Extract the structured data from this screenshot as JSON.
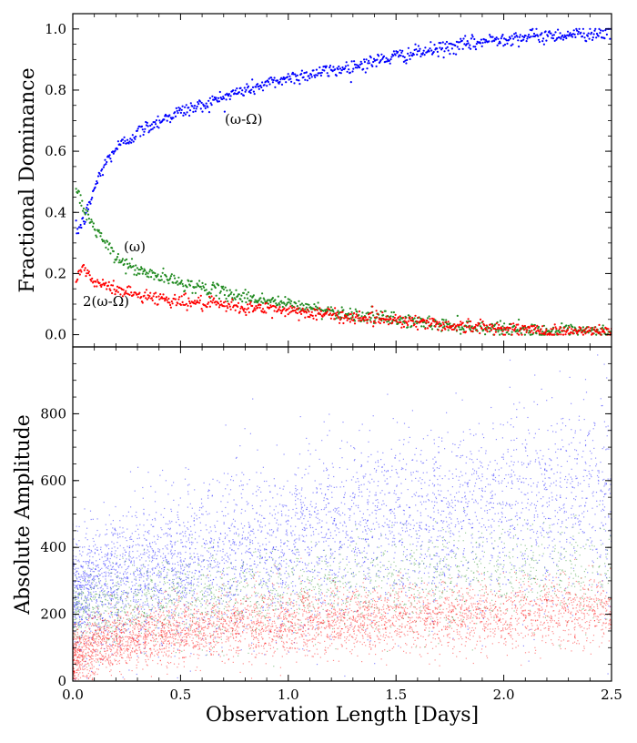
{
  "chart_data": [
    {
      "type": "scatter",
      "ylabel": "Fractional Dominance",
      "xlim": [
        0.0,
        2.5
      ],
      "ylim": [
        -0.04,
        1.05
      ],
      "xticks": [
        0.0,
        0.5,
        1.0,
        1.5,
        2.0,
        2.5
      ],
      "yticks": [
        "0.0",
        "0.2",
        "0.4",
        "0.6",
        "0.8",
        "1.0"
      ],
      "ytick_values": [
        0.0,
        0.2,
        0.4,
        0.6,
        0.8,
        1.0
      ],
      "annotations": [
        {
          "text": "(ω-Ω)",
          "x": 0.71,
          "y": 0.69
        },
        {
          "text": "(ω)",
          "x": 0.24,
          "y": 0.27
        },
        {
          "text": "2(ω-Ω)",
          "x": 0.05,
          "y": 0.1
        }
      ],
      "series": [
        {
          "color": "#0000ff",
          "x": [
            0.02,
            0.05,
            0.08,
            0.1,
            0.15,
            0.2,
            0.3,
            0.4,
            0.5,
            0.6,
            0.75,
            0.9,
            1.0,
            1.25,
            1.5,
            1.75,
            2.0,
            2.25,
            2.5
          ],
          "y": [
            0.34,
            0.37,
            0.43,
            0.48,
            0.56,
            0.61,
            0.66,
            0.7,
            0.73,
            0.75,
            0.79,
            0.82,
            0.84,
            0.87,
            0.91,
            0.94,
            0.97,
            0.98,
            0.99
          ]
        },
        {
          "color": "#228b22",
          "x": [
            0.01,
            0.05,
            0.1,
            0.2,
            0.3,
            0.5,
            0.75,
            1.0,
            1.25,
            1.5,
            1.75,
            2.0,
            2.25,
            2.5
          ],
          "y": [
            0.49,
            0.41,
            0.35,
            0.25,
            0.21,
            0.17,
            0.13,
            0.1,
            0.07,
            0.05,
            0.03,
            0.02,
            0.01,
            0.01
          ]
        },
        {
          "color": "#ff0000",
          "x": [
            0.01,
            0.05,
            0.1,
            0.2,
            0.3,
            0.5,
            0.75,
            1.0,
            1.25,
            1.5,
            1.75,
            2.0,
            2.25,
            2.5
          ],
          "y": [
            0.17,
            0.22,
            0.17,
            0.15,
            0.13,
            0.11,
            0.09,
            0.08,
            0.06,
            0.05,
            0.03,
            0.02,
            0.01,
            0.01
          ]
        }
      ]
    },
    {
      "type": "scatter",
      "xlabel": "Observation Length [Days]",
      "ylabel": "Absolute Amplitude",
      "xlim": [
        0.0,
        2.5
      ],
      "ylim": [
        0,
        1000
      ],
      "xticks": [
        "0.0",
        "0.5",
        "1.0",
        "1.5",
        "2.0",
        "2.5"
      ],
      "xtick_values": [
        0.0,
        0.5,
        1.0,
        1.5,
        2.0,
        2.5
      ],
      "yticks": [
        "0",
        "200",
        "400",
        "600",
        "800"
      ],
      "ytick_values": [
        0,
        200,
        400,
        600,
        800
      ],
      "series": [
        {
          "color": "#0000ff",
          "x": [
            0.0,
            0.1,
            0.25,
            0.5,
            0.75,
            1.0,
            1.5,
            2.0,
            2.5
          ],
          "median": [
            250,
            290,
            310,
            340,
            380,
            420,
            480,
            520,
            560
          ],
          "spread": [
            90,
            100,
            110,
            120,
            130,
            140,
            150,
            160,
            170
          ]
        },
        {
          "color": "#228b22",
          "x": [
            0.0,
            0.1,
            0.25,
            0.5,
            0.75,
            1.0,
            1.5,
            2.0,
            2.5
          ],
          "median": [
            200,
            220,
            230,
            250,
            260,
            270,
            300,
            320,
            340
          ],
          "spread": [
            60,
            60,
            60,
            70,
            70,
            70,
            80,
            80,
            90
          ]
        },
        {
          "color": "#ff0000",
          "x": [
            0.0,
            0.1,
            0.25,
            0.5,
            0.75,
            1.0,
            1.5,
            2.0,
            2.5
          ],
          "median": [
            70,
            110,
            130,
            150,
            165,
            175,
            190,
            200,
            210
          ],
          "spread": [
            45,
            50,
            50,
            55,
            55,
            55,
            55,
            55,
            55
          ]
        }
      ]
    }
  ]
}
